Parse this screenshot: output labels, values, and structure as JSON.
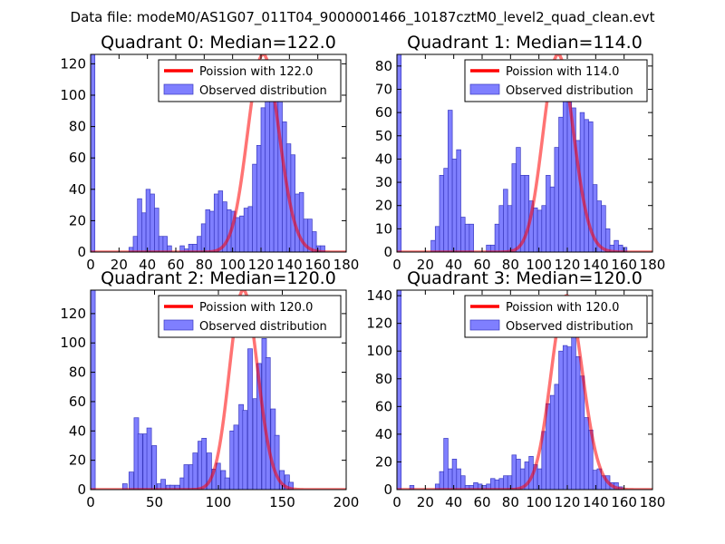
{
  "figure_title": "Data file: modeM0/AS1G07_011T04_9000001466_10187cztM0_level2_quad_clean.evt",
  "colors": {
    "observed_fill": "#7f7fff",
    "observed_edge": "#3a3ac0",
    "poisson_line": "#ff0000",
    "axis": "#000000"
  },
  "chart_data": [
    {
      "type": "bar",
      "title": "Quadrant 0: Median=122.0",
      "xlim": [
        0,
        180
      ],
      "ylim": [
        0,
        126
      ],
      "xticks": [
        0,
        20,
        40,
        60,
        80,
        100,
        120,
        140,
        160,
        180
      ],
      "yticks": [
        0,
        20,
        40,
        60,
        80,
        100,
        120
      ],
      "bin_width": 3,
      "bins": [
        {
          "x": 0,
          "y": 126
        },
        {
          "x": 27,
          "y": 3
        },
        {
          "x": 30,
          "y": 10
        },
        {
          "x": 33,
          "y": 34
        },
        {
          "x": 36,
          "y": 25
        },
        {
          "x": 39,
          "y": 40
        },
        {
          "x": 42,
          "y": 37
        },
        {
          "x": 45,
          "y": 28
        },
        {
          "x": 48,
          "y": 10
        },
        {
          "x": 51,
          "y": 10
        },
        {
          "x": 54,
          "y": 4
        },
        {
          "x": 63,
          "y": 4
        },
        {
          "x": 66,
          "y": 2
        },
        {
          "x": 69,
          "y": 5
        },
        {
          "x": 72,
          "y": 5
        },
        {
          "x": 75,
          "y": 10
        },
        {
          "x": 78,
          "y": 18
        },
        {
          "x": 81,
          "y": 27
        },
        {
          "x": 84,
          "y": 26
        },
        {
          "x": 87,
          "y": 37
        },
        {
          "x": 90,
          "y": 39
        },
        {
          "x": 93,
          "y": 32
        },
        {
          "x": 96,
          "y": 27
        },
        {
          "x": 99,
          "y": 26
        },
        {
          "x": 102,
          "y": 22
        },
        {
          "x": 105,
          "y": 23
        },
        {
          "x": 108,
          "y": 28
        },
        {
          "x": 111,
          "y": 29
        },
        {
          "x": 114,
          "y": 56
        },
        {
          "x": 117,
          "y": 68
        },
        {
          "x": 120,
          "y": 92
        },
        {
          "x": 123,
          "y": 110
        },
        {
          "x": 126,
          "y": 102
        },
        {
          "x": 129,
          "y": 96
        },
        {
          "x": 132,
          "y": 110
        },
        {
          "x": 135,
          "y": 83
        },
        {
          "x": 138,
          "y": 69
        },
        {
          "x": 141,
          "y": 62
        },
        {
          "x": 144,
          "y": 37
        },
        {
          "x": 147,
          "y": 38
        },
        {
          "x": 150,
          "y": 21
        },
        {
          "x": 153,
          "y": 21
        },
        {
          "x": 156,
          "y": 13
        },
        {
          "x": 159,
          "y": 4
        },
        {
          "x": 162,
          "y": 4
        }
      ],
      "poisson": {
        "mean": 122.0,
        "peak": 126
      },
      "legend": {
        "position": "top-right",
        "poisson_label": "Poission with 122.0",
        "observed_label": "Observed distribution"
      }
    },
    {
      "type": "bar",
      "title": "Quadrant 1: Median=114.0",
      "xlim": [
        0,
        180
      ],
      "ylim": [
        0,
        85
      ],
      "xticks": [
        0,
        20,
        40,
        60,
        80,
        100,
        120,
        140,
        160,
        180
      ],
      "yticks": [
        0,
        10,
        20,
        30,
        40,
        50,
        60,
        70,
        80
      ],
      "bin_width": 3,
      "bins": [
        {
          "x": 0,
          "y": 85
        },
        {
          "x": 24,
          "y": 5
        },
        {
          "x": 27,
          "y": 11
        },
        {
          "x": 30,
          "y": 33
        },
        {
          "x": 33,
          "y": 36
        },
        {
          "x": 36,
          "y": 61
        },
        {
          "x": 39,
          "y": 40
        },
        {
          "x": 42,
          "y": 44
        },
        {
          "x": 45,
          "y": 15
        },
        {
          "x": 48,
          "y": 12
        },
        {
          "x": 51,
          "y": 12
        },
        {
          "x": 63,
          "y": 3
        },
        {
          "x": 66,
          "y": 3
        },
        {
          "x": 69,
          "y": 12
        },
        {
          "x": 72,
          "y": 20
        },
        {
          "x": 75,
          "y": 27
        },
        {
          "x": 78,
          "y": 20
        },
        {
          "x": 81,
          "y": 38
        },
        {
          "x": 84,
          "y": 45
        },
        {
          "x": 87,
          "y": 33
        },
        {
          "x": 90,
          "y": 33
        },
        {
          "x": 93,
          "y": 22
        },
        {
          "x": 96,
          "y": 19
        },
        {
          "x": 99,
          "y": 18
        },
        {
          "x": 102,
          "y": 20
        },
        {
          "x": 105,
          "y": 33
        },
        {
          "x": 108,
          "y": 28
        },
        {
          "x": 111,
          "y": 45
        },
        {
          "x": 114,
          "y": 58
        },
        {
          "x": 117,
          "y": 67
        },
        {
          "x": 120,
          "y": 82
        },
        {
          "x": 123,
          "y": 62
        },
        {
          "x": 126,
          "y": 48
        },
        {
          "x": 129,
          "y": 60
        },
        {
          "x": 132,
          "y": 57
        },
        {
          "x": 135,
          "y": 56
        },
        {
          "x": 138,
          "y": 29
        },
        {
          "x": 141,
          "y": 22
        },
        {
          "x": 144,
          "y": 20
        },
        {
          "x": 147,
          "y": 10
        },
        {
          "x": 150,
          "y": 3
        },
        {
          "x": 153,
          "y": 5
        },
        {
          "x": 156,
          "y": 3
        },
        {
          "x": 159,
          "y": 2
        }
      ],
      "poisson": {
        "mean": 114.0,
        "peak": 85
      },
      "legend": {
        "position": "top-right",
        "poisson_label": "Poission with 114.0",
        "observed_label": "Observed distribution"
      }
    },
    {
      "type": "bar",
      "title": "Quadrant 2: Median=120.0",
      "xlim": [
        0,
        200
      ],
      "ylim": [
        0,
        136
      ],
      "xticks": [
        0,
        50,
        100,
        150,
        200
      ],
      "yticks": [
        0,
        20,
        40,
        60,
        80,
        100,
        120
      ],
      "bin_width": 3.6,
      "bins": [
        {
          "x": 0,
          "y": 136
        },
        {
          "x": 25,
          "y": 4
        },
        {
          "x": 30,
          "y": 12
        },
        {
          "x": 34,
          "y": 49
        },
        {
          "x": 37,
          "y": 38
        },
        {
          "x": 41,
          "y": 38
        },
        {
          "x": 44,
          "y": 42
        },
        {
          "x": 48,
          "y": 30
        },
        {
          "x": 52,
          "y": 4
        },
        {
          "x": 55,
          "y": 7
        },
        {
          "x": 59,
          "y": 3
        },
        {
          "x": 62,
          "y": 3
        },
        {
          "x": 66,
          "y": 3
        },
        {
          "x": 70,
          "y": 8
        },
        {
          "x": 73,
          "y": 17
        },
        {
          "x": 77,
          "y": 17
        },
        {
          "x": 80,
          "y": 25
        },
        {
          "x": 84,
          "y": 33
        },
        {
          "x": 87,
          "y": 35
        },
        {
          "x": 91,
          "y": 25
        },
        {
          "x": 95,
          "y": 14
        },
        {
          "x": 98,
          "y": 18
        },
        {
          "x": 102,
          "y": 13
        },
        {
          "x": 105,
          "y": 8
        },
        {
          "x": 109,
          "y": 40
        },
        {
          "x": 112,
          "y": 44
        },
        {
          "x": 116,
          "y": 58
        },
        {
          "x": 119,
          "y": 54
        },
        {
          "x": 123,
          "y": 96
        },
        {
          "x": 127,
          "y": 62
        },
        {
          "x": 130,
          "y": 86
        },
        {
          "x": 134,
          "y": 103
        },
        {
          "x": 137,
          "y": 90
        },
        {
          "x": 141,
          "y": 55
        },
        {
          "x": 144,
          "y": 37
        },
        {
          "x": 148,
          "y": 13
        },
        {
          "x": 152,
          "y": 10
        },
        {
          "x": 155,
          "y": 5
        }
      ],
      "poisson": {
        "mean": 120.0,
        "peak": 136
      },
      "legend": {
        "position": "top-right",
        "poisson_label": "Poission with 120.0",
        "observed_label": "Observed distribution"
      }
    },
    {
      "type": "bar",
      "title": "Quadrant 3: Median=120.0",
      "xlim": [
        0,
        180
      ],
      "ylim": [
        0,
        144
      ],
      "xticks": [
        0,
        20,
        40,
        60,
        80,
        100,
        120,
        140,
        160,
        180
      ],
      "yticks": [
        0,
        20,
        40,
        60,
        80,
        100,
        120,
        140
      ],
      "bin_width": 3,
      "bins": [
        {
          "x": 0,
          "y": 144
        },
        {
          "x": 9,
          "y": 3
        },
        {
          "x": 27,
          "y": 4
        },
        {
          "x": 30,
          "y": 13
        },
        {
          "x": 33,
          "y": 37
        },
        {
          "x": 36,
          "y": 15
        },
        {
          "x": 39,
          "y": 22
        },
        {
          "x": 42,
          "y": 15
        },
        {
          "x": 45,
          "y": 10
        },
        {
          "x": 48,
          "y": 3
        },
        {
          "x": 51,
          "y": 3
        },
        {
          "x": 54,
          "y": 5
        },
        {
          "x": 57,
          "y": 4
        },
        {
          "x": 60,
          "y": 3
        },
        {
          "x": 63,
          "y": 4
        },
        {
          "x": 66,
          "y": 8
        },
        {
          "x": 69,
          "y": 7
        },
        {
          "x": 72,
          "y": 8
        },
        {
          "x": 75,
          "y": 10
        },
        {
          "x": 78,
          "y": 10
        },
        {
          "x": 81,
          "y": 25
        },
        {
          "x": 84,
          "y": 22
        },
        {
          "x": 87,
          "y": 15
        },
        {
          "x": 90,
          "y": 20
        },
        {
          "x": 93,
          "y": 24
        },
        {
          "x": 96,
          "y": 18
        },
        {
          "x": 99,
          "y": 15
        },
        {
          "x": 102,
          "y": 42
        },
        {
          "x": 105,
          "y": 62
        },
        {
          "x": 108,
          "y": 68
        },
        {
          "x": 111,
          "y": 76
        },
        {
          "x": 114,
          "y": 100
        },
        {
          "x": 117,
          "y": 104
        },
        {
          "x": 120,
          "y": 103
        },
        {
          "x": 123,
          "y": 110
        },
        {
          "x": 126,
          "y": 96
        },
        {
          "x": 129,
          "y": 82
        },
        {
          "x": 132,
          "y": 52
        },
        {
          "x": 135,
          "y": 43
        },
        {
          "x": 138,
          "y": 14
        },
        {
          "x": 141,
          "y": 15
        },
        {
          "x": 144,
          "y": 10
        },
        {
          "x": 147,
          "y": 10
        },
        {
          "x": 150,
          "y": 5
        },
        {
          "x": 153,
          "y": 5
        },
        {
          "x": 156,
          "y": 2
        }
      ],
      "poisson": {
        "mean": 120.0,
        "peak": 140
      },
      "legend": {
        "position": "top-right",
        "poisson_label": "Poission with 120.0",
        "observed_label": "Observed distribution"
      }
    }
  ]
}
